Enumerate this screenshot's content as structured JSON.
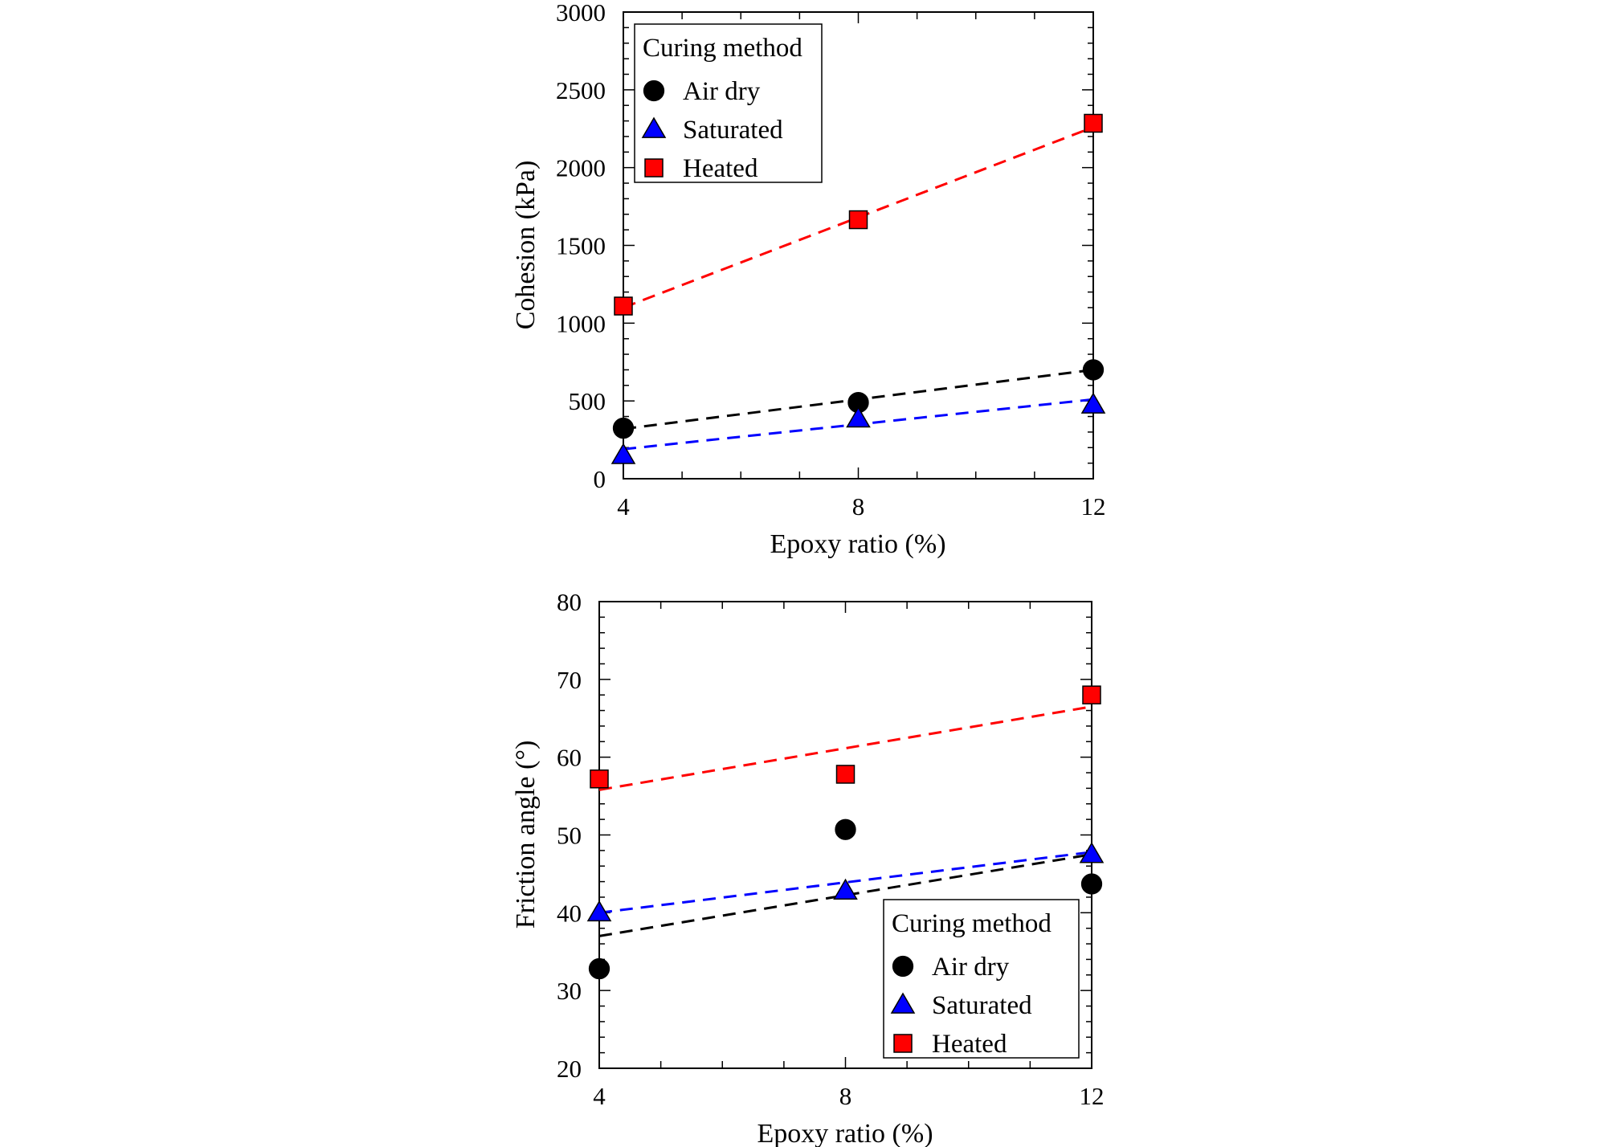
{
  "chart_data": [
    {
      "type": "scatter",
      "xlabel": "Epoxy ratio (%)",
      "ylabel": "Cohesion (kPa)",
      "xlim": [
        4,
        12
      ],
      "ylim": [
        0,
        3000
      ],
      "xticks": [
        4,
        8,
        12
      ],
      "yticks": [
        0,
        500,
        1000,
        1500,
        2000,
        2500,
        3000
      ],
      "legend": {
        "title": "Curing method",
        "placement": "top-left"
      },
      "series": [
        {
          "name": "Air dry",
          "marker": "circle",
          "color": "#000000",
          "x": [
            4,
            8,
            12
          ],
          "values": [
            325,
            490,
            700
          ],
          "trendline": {
            "x": [
              4,
              12
            ],
            "y": [
              320,
              700
            ]
          }
        },
        {
          "name": "Saturated",
          "marker": "triangle",
          "color": "#0000ff",
          "x": [
            4,
            8,
            12
          ],
          "values": [
            150,
            385,
            475
          ],
          "trendline": {
            "x": [
              4,
              12
            ],
            "y": [
              190,
              510
            ]
          }
        },
        {
          "name": "Heated",
          "marker": "square",
          "color": "#ff0000",
          "x": [
            4,
            8,
            12
          ],
          "values": [
            1110,
            1665,
            2285
          ],
          "trendline": {
            "x": [
              4,
              12
            ],
            "y": [
              1100,
              2260
            ]
          }
        }
      ]
    },
    {
      "type": "scatter",
      "xlabel": "Epoxy ratio (%)",
      "ylabel": "Friction angle (°)",
      "xlim": [
        4,
        12
      ],
      "ylim": [
        20,
        80
      ],
      "xticks": [
        4,
        8,
        12
      ],
      "yticks": [
        20,
        30,
        40,
        50,
        60,
        70,
        80
      ],
      "legend": {
        "title": "Curing method",
        "placement": "bottom-right"
      },
      "series": [
        {
          "name": "Air dry",
          "marker": "circle",
          "color": "#000000",
          "x": [
            4,
            8,
            12
          ],
          "values": [
            32.8,
            50.7,
            43.7
          ],
          "trendline": {
            "x": [
              4,
              12
            ],
            "y": [
              37,
              47.5
            ]
          }
        },
        {
          "name": "Saturated",
          "marker": "triangle",
          "color": "#0000ff",
          "x": [
            4,
            8,
            12
          ],
          "values": [
            40.0,
            42.8,
            47.5
          ],
          "trendline": {
            "x": [
              4,
              12
            ],
            "y": [
              40,
              47.8
            ]
          }
        },
        {
          "name": "Heated",
          "marker": "square",
          "color": "#ff0000",
          "x": [
            4,
            8,
            12
          ],
          "values": [
            57.2,
            57.8,
            68.0
          ],
          "trendline": {
            "x": [
              4,
              12
            ],
            "y": [
              55.8,
              66.5
            ]
          }
        }
      ]
    }
  ]
}
